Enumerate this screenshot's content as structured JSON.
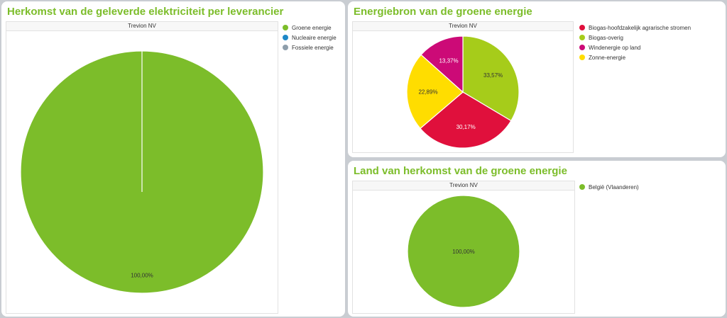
{
  "panels": [
    {
      "title": "Herkomst van de geleverde elektriciteit per leverancier",
      "chart_title": "Trevion NV",
      "legend": [
        {
          "label": "Groene energie",
          "color": "#7cbd2a"
        },
        {
          "label": "Nucleaire energie",
          "color": "#1e88c7"
        },
        {
          "label": "Fossiele energie",
          "color": "#8e9eab"
        }
      ]
    },
    {
      "title": "Energiebron van de groene energie",
      "chart_title": "Trevion NV",
      "legend": [
        {
          "label": "Biogas-hoofdzakelijk agrarische stromen",
          "color": "#e0103c"
        },
        {
          "label": "Biogas-overig",
          "color": "#a6cc1a"
        },
        {
          "label": "Windenergie op land",
          "color": "#cc0a77"
        },
        {
          "label": "Zonne-energie",
          "color": "#ffdd00"
        }
      ]
    },
    {
      "title": "Land van herkomst van de groene energie",
      "chart_title": "Trevion NV",
      "legend": [
        {
          "label": "België (Vlaanderen)",
          "color": "#7cbd2a"
        }
      ]
    }
  ],
  "chart_data": [
    {
      "type": "pie",
      "title": "Trevion NV",
      "slices": [
        {
          "name": "Groene energie",
          "value": 100.0,
          "label": "100,00%",
          "color": "#7cbd2a"
        },
        {
          "name": "Nucleaire energie",
          "value": 0,
          "label": "",
          "color": "#1e88c7"
        },
        {
          "name": "Fossiele energie",
          "value": 0,
          "label": "",
          "color": "#8e9eab"
        }
      ],
      "legend": "right"
    },
    {
      "type": "pie",
      "title": "Trevion NV",
      "slices": [
        {
          "name": "Biogas-overig",
          "value": 33.57,
          "label": "33,57%",
          "color": "#a6cc1a"
        },
        {
          "name": "Biogas-hoofdzakelijk agrarische stromen",
          "value": 30.17,
          "label": "30,17%",
          "color": "#e0103c"
        },
        {
          "name": "Zonne-energie",
          "value": 22.89,
          "label": "22,89%",
          "color": "#ffdd00"
        },
        {
          "name": "Windenergie op land",
          "value": 13.37,
          "label": "13,37%",
          "color": "#cc0a77"
        }
      ],
      "legend": "right"
    },
    {
      "type": "pie",
      "title": "Trevion NV",
      "slices": [
        {
          "name": "België (Vlaanderen)",
          "value": 100.0,
          "label": "100,00%",
          "color": "#7cbd2a"
        }
      ],
      "legend": "right"
    }
  ]
}
